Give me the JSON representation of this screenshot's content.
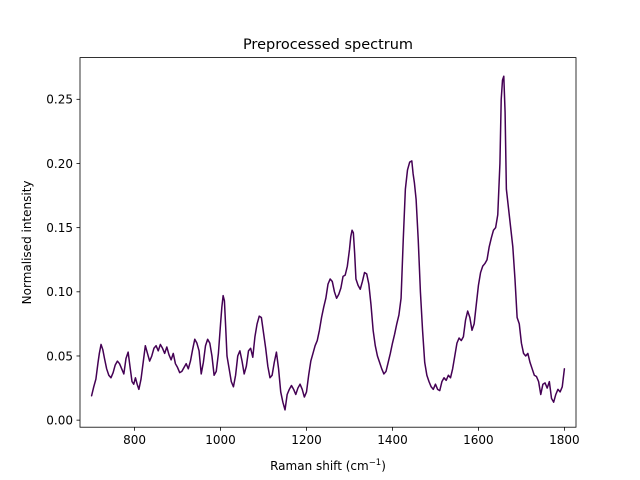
{
  "chart_data": {
    "type": "line",
    "title": "Preprocessed spectrum",
    "xlabel": "Raman shift (cm",
    "xlabel_superscript": "−1",
    "xlabel_suffix": ")",
    "ylabel": "Normalised intensity",
    "xlim": [
      673,
      1827
    ],
    "ylim": [
      -0.0055,
      0.2825
    ],
    "xticks": [
      800,
      1000,
      1200,
      1400,
      1600,
      1800
    ],
    "xtick_labels": [
      "800",
      "1000",
      "1200",
      "1400",
      "1600",
      "1800"
    ],
    "yticks": [
      0.0,
      0.05,
      0.1,
      0.15,
      0.2,
      0.25
    ],
    "ytick_labels": [
      "0.00",
      "0.05",
      "0.10",
      "0.15",
      "0.20",
      "0.25"
    ],
    "grid": false,
    "series": [
      {
        "color": "#440154",
        "x": [
          700,
          705,
          710,
          715,
          718,
          722,
          726,
          730,
          735,
          740,
          745,
          750,
          755,
          760,
          765,
          770,
          775,
          780,
          785,
          790,
          794,
          798,
          802,
          806,
          810,
          815,
          820,
          825,
          830,
          835,
          840,
          845,
          850,
          855,
          860,
          865,
          870,
          875,
          880,
          885,
          890,
          895,
          900,
          905,
          910,
          915,
          920,
          925,
          930,
          935,
          940,
          945,
          950,
          955,
          960,
          965,
          970,
          975,
          980,
          985,
          990,
          995,
          1000,
          1003,
          1006,
          1009,
          1012,
          1015,
          1020,
          1025,
          1030,
          1035,
          1040,
          1045,
          1050,
          1055,
          1060,
          1065,
          1070,
          1075,
          1080,
          1085,
          1090,
          1095,
          1100,
          1105,
          1110,
          1115,
          1120,
          1125,
          1130,
          1135,
          1140,
          1145,
          1150,
          1155,
          1160,
          1165,
          1170,
          1175,
          1180,
          1185,
          1190,
          1195,
          1200,
          1205,
          1210,
          1215,
          1220,
          1225,
          1230,
          1235,
          1240,
          1245,
          1250,
          1255,
          1260,
          1265,
          1270,
          1275,
          1280,
          1285,
          1290,
          1295,
          1300,
          1303,
          1306,
          1309,
          1312,
          1315,
          1320,
          1325,
          1330,
          1335,
          1340,
          1345,
          1350,
          1355,
          1360,
          1365,
          1370,
          1375,
          1380,
          1385,
          1390,
          1395,
          1400,
          1405,
          1410,
          1415,
          1420,
          1425,
          1430,
          1435,
          1440,
          1445,
          1448,
          1451,
          1455,
          1460,
          1465,
          1470,
          1475,
          1480,
          1485,
          1490,
          1495,
          1500,
          1505,
          1510,
          1515,
          1520,
          1525,
          1530,
          1535,
          1540,
          1545,
          1550,
          1555,
          1560,
          1565,
          1570,
          1575,
          1580,
          1585,
          1590,
          1595,
          1600,
          1605,
          1610,
          1615,
          1620,
          1625,
          1630,
          1635,
          1640,
          1645,
          1650,
          1653,
          1656,
          1659,
          1662,
          1665,
          1670,
          1675,
          1680,
          1685,
          1690,
          1695,
          1700,
          1705,
          1710,
          1715,
          1720,
          1725,
          1730,
          1735,
          1740,
          1745,
          1750,
          1755,
          1760,
          1765,
          1770,
          1775,
          1780,
          1785,
          1790,
          1795,
          1800
        ],
        "y": [
          0.019,
          0.026,
          0.032,
          0.045,
          0.052,
          0.059,
          0.055,
          0.048,
          0.04,
          0.035,
          0.033,
          0.037,
          0.043,
          0.046,
          0.044,
          0.04,
          0.036,
          0.048,
          0.053,
          0.04,
          0.03,
          0.028,
          0.033,
          0.028,
          0.024,
          0.032,
          0.045,
          0.058,
          0.052,
          0.046,
          0.05,
          0.056,
          0.058,
          0.054,
          0.059,
          0.056,
          0.052,
          0.057,
          0.051,
          0.047,
          0.052,
          0.044,
          0.041,
          0.037,
          0.038,
          0.041,
          0.044,
          0.04,
          0.046,
          0.055,
          0.063,
          0.06,
          0.054,
          0.036,
          0.045,
          0.058,
          0.063,
          0.06,
          0.05,
          0.035,
          0.038,
          0.052,
          0.075,
          0.088,
          0.097,
          0.093,
          0.072,
          0.05,
          0.04,
          0.03,
          0.026,
          0.035,
          0.05,
          0.054,
          0.046,
          0.036,
          0.042,
          0.054,
          0.056,
          0.049,
          0.065,
          0.075,
          0.081,
          0.08,
          0.068,
          0.056,
          0.042,
          0.033,
          0.035,
          0.045,
          0.053,
          0.04,
          0.022,
          0.014,
          0.008,
          0.02,
          0.024,
          0.027,
          0.024,
          0.02,
          0.025,
          0.028,
          0.024,
          0.018,
          0.022,
          0.035,
          0.046,
          0.052,
          0.058,
          0.062,
          0.07,
          0.08,
          0.088,
          0.095,
          0.106,
          0.11,
          0.108,
          0.1,
          0.095,
          0.098,
          0.103,
          0.112,
          0.113,
          0.12,
          0.133,
          0.143,
          0.148,
          0.146,
          0.13,
          0.11,
          0.105,
          0.102,
          0.108,
          0.115,
          0.114,
          0.106,
          0.09,
          0.07,
          0.058,
          0.05,
          0.045,
          0.04,
          0.036,
          0.038,
          0.045,
          0.052,
          0.06,
          0.067,
          0.075,
          0.082,
          0.095,
          0.14,
          0.18,
          0.195,
          0.201,
          0.202,
          0.192,
          0.185,
          0.172,
          0.14,
          0.1,
          0.07,
          0.045,
          0.035,
          0.03,
          0.026,
          0.024,
          0.028,
          0.024,
          0.023,
          0.03,
          0.033,
          0.031,
          0.035,
          0.033,
          0.04,
          0.05,
          0.06,
          0.064,
          0.062,
          0.065,
          0.078,
          0.085,
          0.08,
          0.07,
          0.075,
          0.09,
          0.105,
          0.115,
          0.12,
          0.122,
          0.125,
          0.135,
          0.142,
          0.148,
          0.15,
          0.16,
          0.2,
          0.25,
          0.265,
          0.268,
          0.24,
          0.18,
          0.165,
          0.15,
          0.135,
          0.11,
          0.08,
          0.075,
          0.06,
          0.052,
          0.05,
          0.052,
          0.045,
          0.04,
          0.035,
          0.034,
          0.03,
          0.02,
          0.028,
          0.029,
          0.025,
          0.03,
          0.017,
          0.014,
          0.02,
          0.024,
          0.022,
          0.026,
          0.04
        ]
      }
    ]
  }
}
